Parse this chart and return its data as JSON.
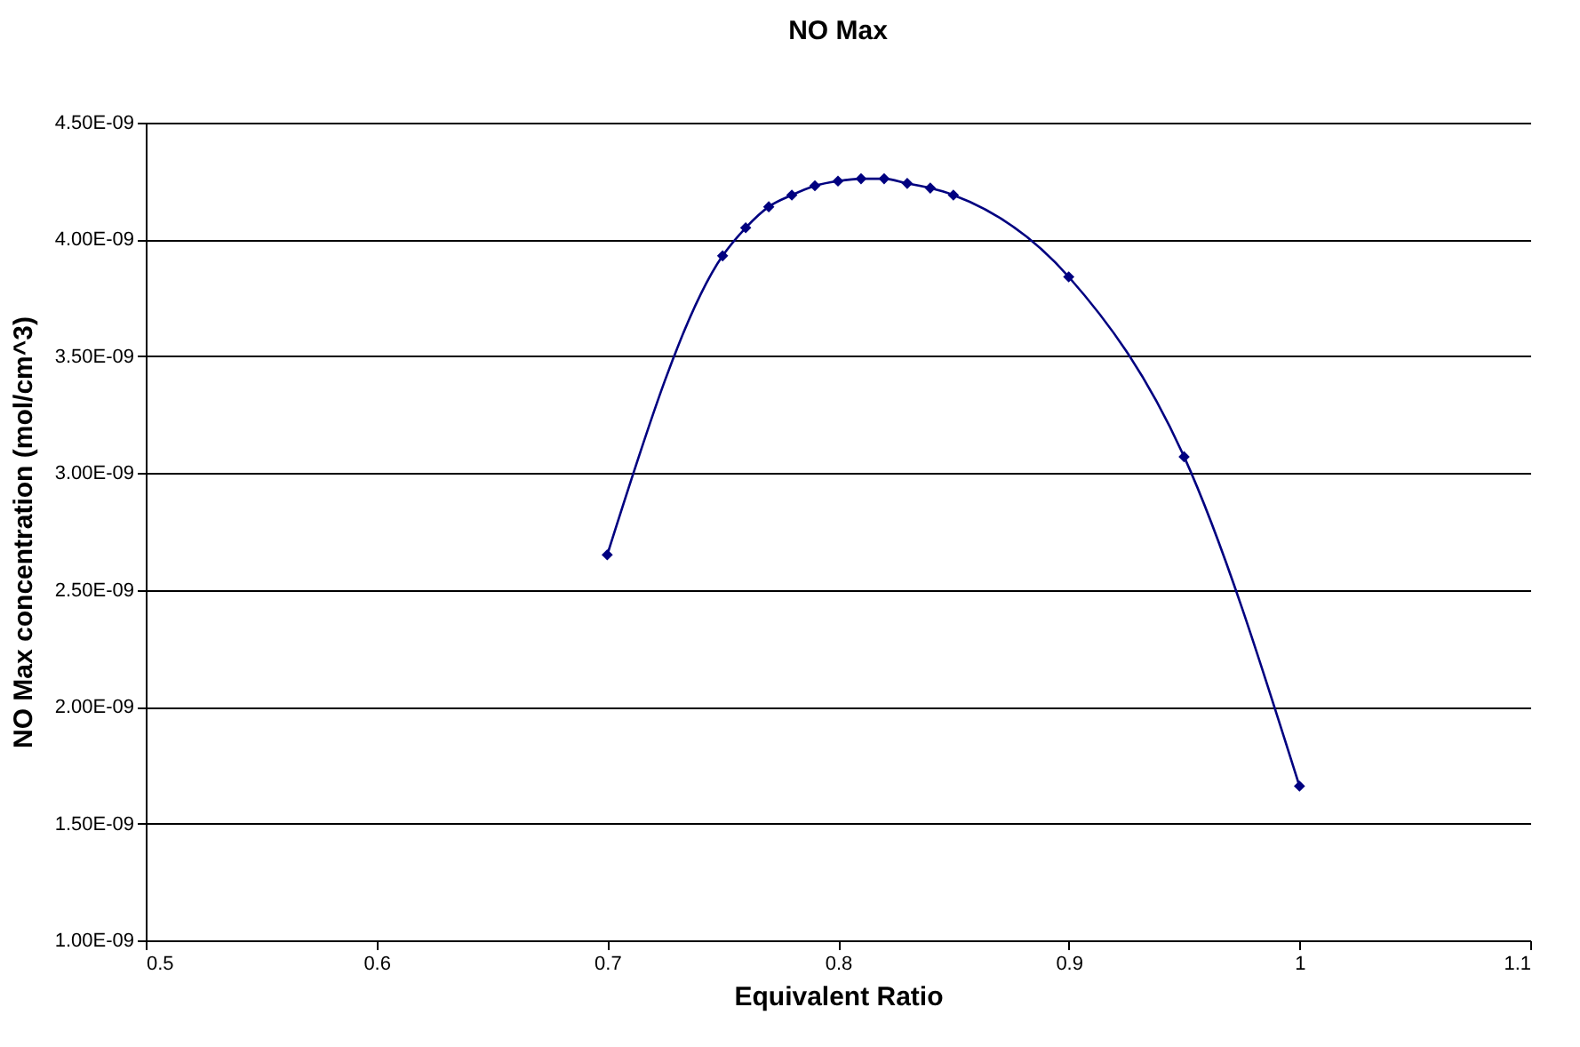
{
  "chart_data": {
    "type": "line",
    "title": "NO Max",
    "xlabel": "Equivalent Ratio",
    "ylabel": "NO Max concentration (mol/cm^3)",
    "x": [
      0.7,
      0.75,
      0.76,
      0.77,
      0.78,
      0.79,
      0.8,
      0.81,
      0.82,
      0.83,
      0.84,
      0.85,
      0.9,
      0.95,
      1.0
    ],
    "series": [
      {
        "color": "#000080",
        "values": [
          2.65e-09,
          3.93e-09,
          4.05e-09,
          4.14e-09,
          4.19e-09,
          4.23e-09,
          4.25e-09,
          4.26e-09,
          4.26e-09,
          4.24e-09,
          4.22e-09,
          4.19e-09,
          3.84e-09,
          3.07e-09,
          1.66e-09
        ]
      }
    ],
    "xlim": [
      0.5,
      1.1
    ],
    "xticks": [
      0.5,
      0.6,
      0.7,
      0.8,
      0.9,
      1,
      1.1
    ],
    "ylim": [
      1e-09,
      4.5e-09
    ],
    "yticks": [
      {
        "value": 1e-09,
        "label": "1.00E-09"
      },
      {
        "value": 1.5e-09,
        "label": "1.50E-09"
      },
      {
        "value": 2e-09,
        "label": "2.00E-09"
      },
      {
        "value": 2.5e-09,
        "label": "2.50E-09"
      },
      {
        "value": 3e-09,
        "label": "3.00E-09"
      },
      {
        "value": 3.5e-09,
        "label": "3.50E-09"
      },
      {
        "value": 4e-09,
        "label": "4.00E-09"
      },
      {
        "value": 4.5e-09,
        "label": "4.50E-09"
      }
    ],
    "grid": "y",
    "legend": false,
    "marker": "diamond",
    "line_style": "solid"
  }
}
